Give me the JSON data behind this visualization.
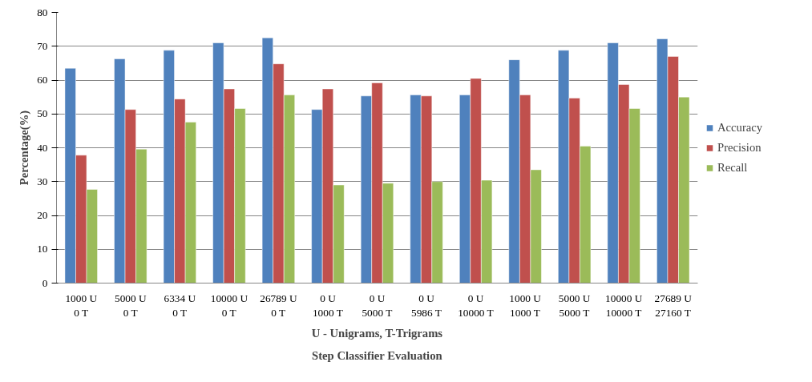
{
  "chart_data": {
    "type": "bar",
    "xlabel": "U - Unigrams, T-Trigrams\nStep Classifier Evaluation",
    "ylabel": "Percentage(%)",
    "categories": [
      "1000 U\n0 T",
      "5000 U\n0 T",
      "6334 U\n0 T",
      "10000 U\n0 T",
      "26789 U\n0 T",
      "0 U\n1000 T",
      "0 U\n5000 T",
      "0 U\n5986 T",
      "0 U\n10000 T",
      "1000 U\n1000 T",
      "5000 U\n5000 T",
      "10000 U\n10000 T",
      "27689 U\n27160 T"
    ],
    "series": [
      {
        "name": "Accuracy",
        "color": "#4f81bd",
        "values": [
          63.5,
          66.3,
          68.8,
          71,
          72.5,
          51.3,
          55.3,
          55.6,
          55.6,
          66,
          68.8,
          71,
          72.2
        ]
      },
      {
        "name": "Precision",
        "color": "#c0504d",
        "values": [
          37.8,
          51.3,
          54.4,
          57.4,
          64.8,
          57.4,
          59.2,
          55.3,
          60.5,
          55.6,
          54.7,
          58.7,
          67
        ]
      },
      {
        "name": "Recall",
        "color": "#9bbb59",
        "values": [
          27.7,
          39.6,
          47.6,
          51.6,
          55.6,
          29,
          29.5,
          30,
          30.4,
          33.5,
          40.5,
          51.6,
          55
        ]
      }
    ],
    "ylim": [
      0,
      80
    ],
    "yticks": [
      0,
      10,
      20,
      30,
      40,
      50,
      60,
      70,
      80
    ],
    "grid": "y",
    "legend": "right"
  }
}
